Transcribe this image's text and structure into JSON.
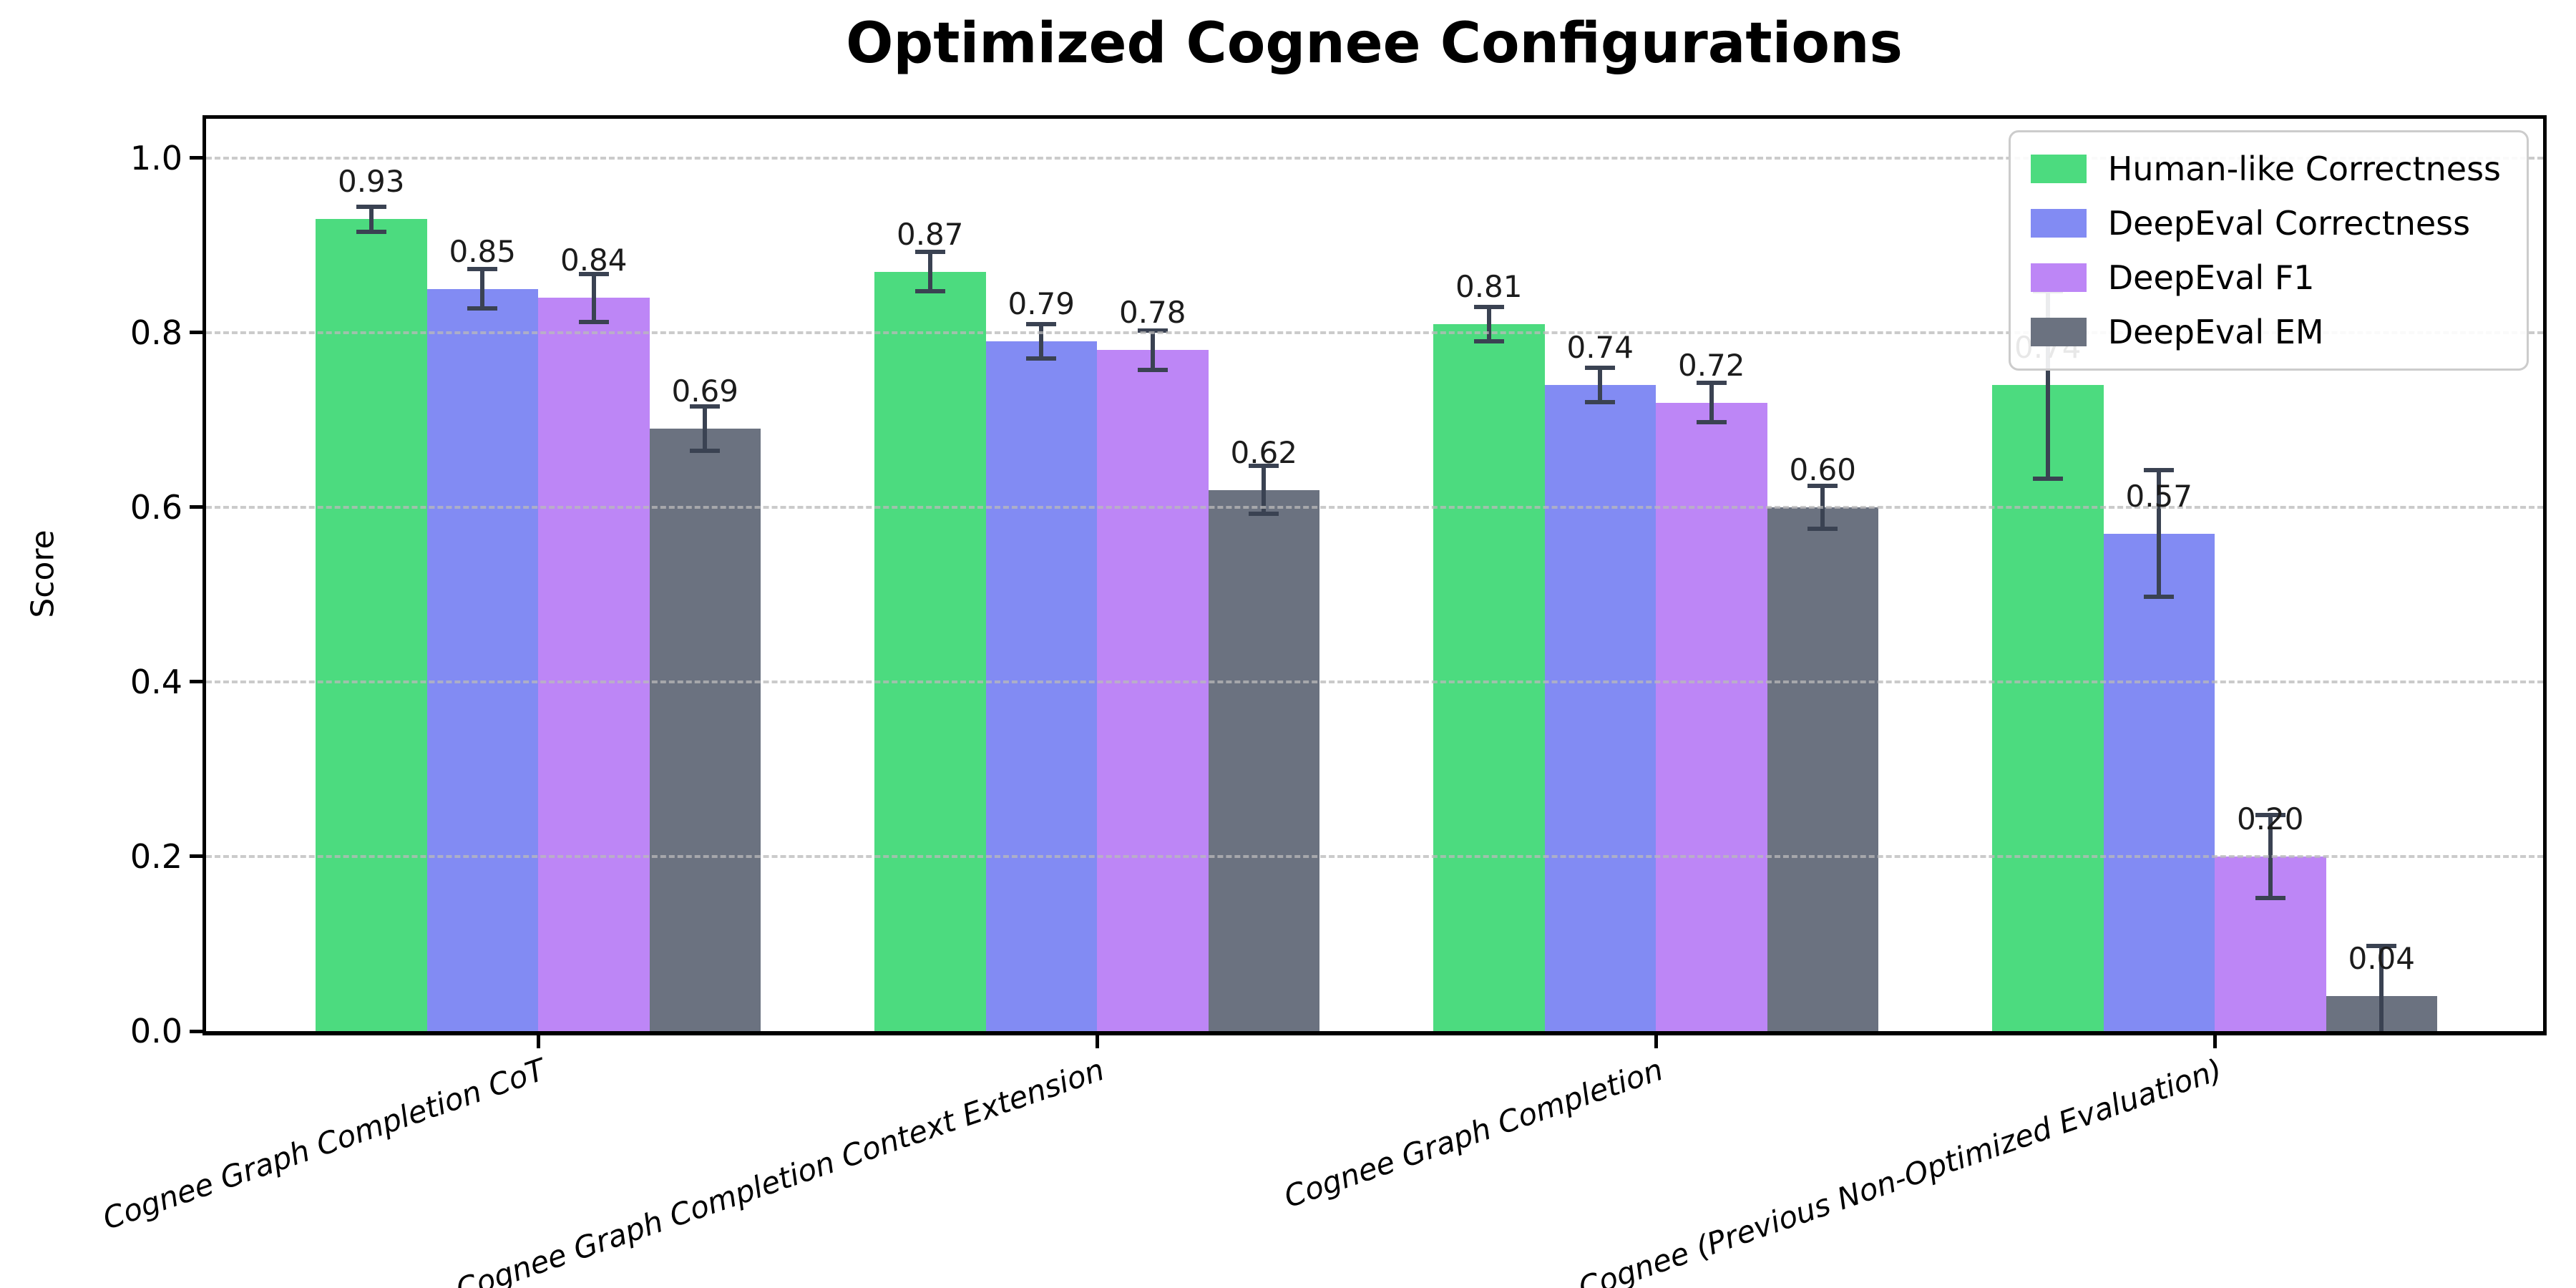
{
  "chart_data": {
    "type": "bar",
    "title": "Optimized Cognee Configurations",
    "xlabel": "",
    "ylabel": "Score",
    "ylim": [
      0,
      1.05
    ],
    "yticks": [
      0.0,
      0.2,
      0.4,
      0.6,
      0.8,
      1.0
    ],
    "ytick_labels": [
      "0.0",
      "0.2",
      "0.4",
      "0.6",
      "0.8",
      "1.0"
    ],
    "grid": true,
    "grid_style": "dashed-horizontal-over-bars",
    "legend_position": "upper-right",
    "value_label_format": "2-decimals",
    "categories": [
      "Cognee Graph Completion CoT",
      "Cognee Graph Completion Context Extension",
      "Cognee Graph Completion",
      "Cognee (Previous Non-Optimized Evaluation)"
    ],
    "series": [
      {
        "name": "Human-like Correctness",
        "color": "#4cdb7f",
        "values": [
          0.93,
          0.87,
          0.81,
          0.74
        ],
        "errors": [
          0.017,
          0.025,
          0.022,
          0.11
        ]
      },
      {
        "name": "DeepEval Correctness",
        "color": "#828bf3",
        "values": [
          0.85,
          0.79,
          0.74,
          0.57
        ],
        "errors": [
          0.025,
          0.022,
          0.022,
          0.075
        ]
      },
      {
        "name": "DeepEval F1",
        "color": "#bd86f6",
        "values": [
          0.84,
          0.78,
          0.72,
          0.2
        ],
        "errors": [
          0.03,
          0.025,
          0.025,
          0.05
        ]
      },
      {
        "name": "DeepEval EM",
        "color": "#6b7280",
        "values": [
          0.69,
          0.62,
          0.6,
          0.04
        ],
        "errors": [
          0.028,
          0.03,
          0.027,
          0.06
        ]
      }
    ],
    "colors": {
      "error_bar": "#3a4252",
      "grid": "#b9b9b9",
      "axis": "#000000",
      "value_label_text": "#1c1c1c",
      "background": "#ffffff"
    }
  }
}
